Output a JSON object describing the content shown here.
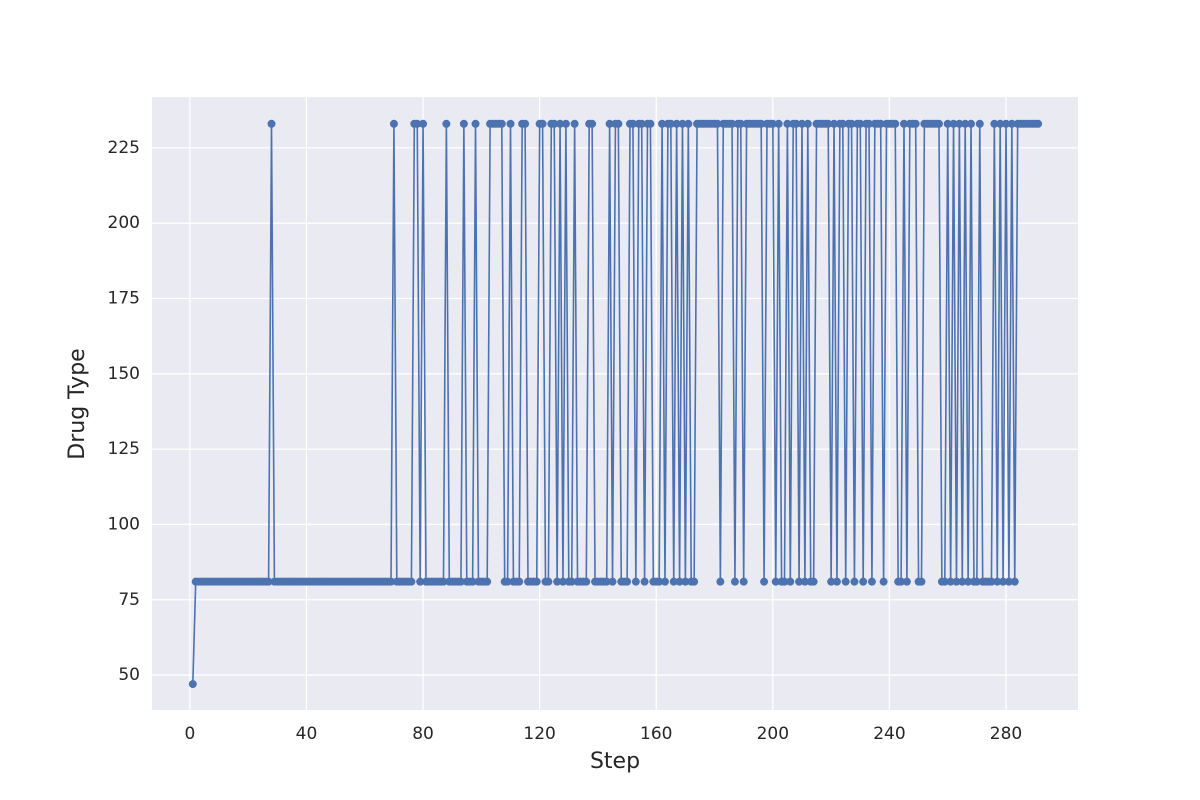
{
  "chart_data": {
    "type": "line",
    "xlabel": "Step",
    "ylabel": "Drug Type",
    "x": [
      1,
      2,
      3,
      4,
      5,
      6,
      7,
      8,
      9,
      10,
      11,
      12,
      13,
      14,
      15,
      16,
      17,
      18,
      19,
      20,
      21,
      22,
      23,
      24,
      25,
      26,
      27,
      28,
      29,
      30,
      31,
      32,
      33,
      34,
      35,
      36,
      37,
      38,
      39,
      40,
      41,
      42,
      43,
      44,
      45,
      46,
      47,
      48,
      49,
      50,
      51,
      52,
      53,
      54,
      55,
      56,
      57,
      58,
      59,
      60,
      61,
      62,
      63,
      64,
      65,
      66,
      67,
      68,
      69,
      70,
      71,
      72,
      73,
      74,
      75,
      76,
      77,
      78,
      79,
      80,
      81,
      82,
      83,
      84,
      85,
      86,
      87,
      88,
      89,
      90,
      91,
      92,
      93,
      94,
      95,
      96,
      97,
      98,
      99,
      100,
      101,
      102,
      103,
      104,
      105,
      106,
      107,
      108,
      109,
      110,
      111,
      112,
      113,
      114,
      115,
      116,
      117,
      118,
      119,
      120,
      121,
      122,
      123,
      124,
      125,
      126,
      127,
      128,
      129,
      130,
      131,
      132,
      133,
      134,
      135,
      136,
      137,
      138,
      139,
      140,
      141,
      142,
      143,
      144,
      145,
      146,
      147,
      148,
      149,
      150,
      151,
      152,
      153,
      154,
      155,
      156,
      157,
      158,
      159,
      160,
      161,
      162,
      163,
      164,
      165,
      166,
      167,
      168,
      169,
      170,
      171,
      172,
      173,
      174,
      175,
      176,
      177,
      178,
      179,
      180,
      181,
      182,
      183,
      184,
      185,
      186,
      187,
      188,
      189,
      190,
      191,
      192,
      193,
      194,
      195,
      196,
      197,
      198,
      199,
      200,
      201,
      202,
      203,
      204,
      205,
      206,
      207,
      208,
      209,
      210,
      211,
      212,
      213,
      214,
      215,
      216,
      217,
      218,
      219,
      220,
      221,
      222,
      223,
      224,
      225,
      226,
      227,
      228,
      229,
      230,
      231,
      232,
      233,
      234,
      235,
      236,
      237,
      238,
      239,
      240,
      241,
      242,
      243,
      244,
      245,
      246,
      247,
      248,
      249,
      250,
      251,
      252,
      253,
      254,
      255,
      256,
      257,
      258,
      259,
      260,
      261,
      262,
      263,
      264,
      265,
      266,
      267,
      268,
      269,
      270,
      271,
      272,
      273,
      274,
      275,
      276,
      277,
      278,
      279,
      280,
      281,
      282,
      283,
      284,
      285,
      286,
      287,
      288,
      289,
      290,
      291
    ],
    "series": [
      {
        "color": "#4c72b0",
        "values": [
          47,
          81,
          81,
          81,
          81,
          81,
          81,
          81,
          81,
          81,
          81,
          81,
          81,
          81,
          81,
          81,
          81,
          81,
          81,
          81,
          81,
          81,
          81,
          81,
          81,
          81,
          81,
          233,
          81,
          81,
          81,
          81,
          81,
          81,
          81,
          81,
          81,
          81,
          81,
          81,
          81,
          81,
          81,
          81,
          81,
          81,
          81,
          81,
          81,
          81,
          81,
          81,
          81,
          81,
          81,
          81,
          81,
          81,
          81,
          81,
          81,
          81,
          81,
          81,
          81,
          81,
          81,
          81,
          81,
          233,
          81,
          81,
          81,
          81,
          81,
          81,
          233,
          233,
          81,
          233,
          81,
          81,
          81,
          81,
          81,
          81,
          81,
          233,
          81,
          81,
          81,
          81,
          81,
          233,
          81,
          81,
          81,
          233,
          81,
          81,
          81,
          81,
          233,
          233,
          233,
          233,
          233,
          81,
          81,
          233,
          81,
          81,
          81,
          233,
          233,
          81,
          81,
          81,
          81,
          233,
          233,
          81,
          81,
          233,
          233,
          81,
          233,
          81,
          233,
          81,
          81,
          233,
          81,
          81,
          81,
          81,
          233,
          233,
          81,
          81,
          81,
          81,
          81,
          233,
          81,
          233,
          233,
          81,
          81,
          81,
          233,
          233,
          81,
          233,
          233,
          81,
          233,
          233,
          81,
          81,
          81,
          233,
          81,
          233,
          233,
          81,
          233,
          81,
          233,
          81,
          233,
          81,
          81,
          233,
          233,
          233,
          233,
          233,
          233,
          233,
          233,
          81,
          233,
          233,
          233,
          233,
          81,
          233,
          233,
          81,
          233,
          233,
          233,
          233,
          233,
          233,
          81,
          233,
          233,
          233,
          81,
          233,
          81,
          81,
          233,
          81,
          233,
          233,
          81,
          233,
          81,
          233,
          81,
          81,
          233,
          233,
          233,
          233,
          233,
          81,
          233,
          81,
          233,
          233,
          81,
          233,
          233,
          81,
          233,
          233,
          81,
          233,
          233,
          81,
          233,
          233,
          233,
          81,
          233,
          233,
          233,
          233,
          81,
          81,
          233,
          81,
          233,
          233,
          233,
          81,
          81,
          233,
          233,
          233,
          233,
          233,
          233,
          81,
          81,
          233,
          81,
          233,
          81,
          233,
          81,
          233,
          81,
          233,
          81,
          81,
          233,
          81,
          81,
          81,
          81,
          233,
          81,
          233,
          81,
          233,
          81,
          233,
          81,
          233,
          233,
          233,
          233,
          233,
          233,
          233,
          233
        ]
      }
    ],
    "xlim": [
      -13,
      304.7
    ],
    "ylim": [
      38.4,
      241.9
    ],
    "xticks": [
      0,
      40,
      80,
      120,
      160,
      200,
      240,
      280
    ],
    "yticks": [
      50,
      75,
      100,
      125,
      150,
      175,
      200,
      225
    ],
    "grid": true,
    "markers": true
  }
}
